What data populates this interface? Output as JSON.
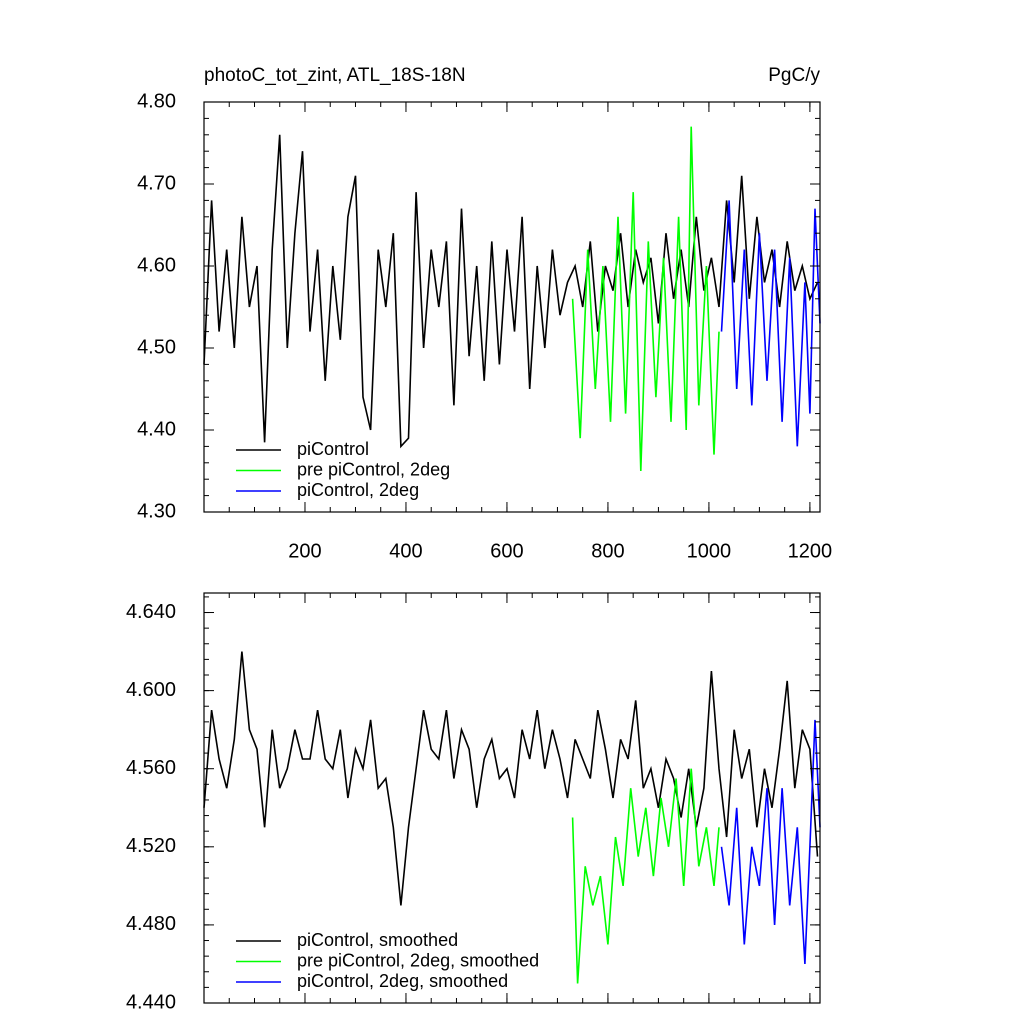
{
  "chart_data": [
    {
      "type": "line",
      "title": "photoC_tot_zint, ATL_18S-18N",
      "units": "PgC/y",
      "xlim": [
        0,
        1220
      ],
      "xticks": [
        200,
        400,
        600,
        800,
        1000,
        1200
      ],
      "xtick_labels": true,
      "ylim": [
        4.3,
        4.8
      ],
      "yticks": [
        {
          "value": 4.3,
          "label": "4.30"
        },
        {
          "value": 4.4,
          "label": "4.40"
        },
        {
          "value": 4.5,
          "label": "4.50"
        },
        {
          "value": 4.6,
          "label": "4.60"
        },
        {
          "value": 4.7,
          "label": "4.70"
        },
        {
          "value": 4.8,
          "label": "4.80"
        }
      ],
      "legend": "lower left",
      "series": [
        {
          "name": "piControl",
          "color": "#000000",
          "x": [
            0,
            15,
            30,
            45,
            60,
            75,
            90,
            105,
            120,
            135,
            150,
            165,
            180,
            195,
            210,
            225,
            240,
            255,
            270,
            285,
            300,
            315,
            330,
            345,
            360,
            375,
            390,
            405,
            420,
            435,
            450,
            465,
            480,
            495,
            510,
            525,
            540,
            555,
            570,
            585,
            600,
            615,
            630,
            645,
            660,
            675,
            690,
            705,
            720,
            735,
            750,
            765,
            780,
            795,
            810,
            825,
            840,
            855,
            870,
            885,
            900,
            915,
            930,
            945,
            960,
            975,
            990,
            1005,
            1020,
            1035,
            1050,
            1065,
            1080,
            1095,
            1110,
            1125,
            1140,
            1155,
            1170,
            1185,
            1200,
            1215
          ],
          "values": [
            4.48,
            4.68,
            4.52,
            4.62,
            4.5,
            4.66,
            4.55,
            4.6,
            4.385,
            4.62,
            4.76,
            4.5,
            4.64,
            4.74,
            4.52,
            4.62,
            4.46,
            4.6,
            4.51,
            4.66,
            4.71,
            4.44,
            4.4,
            4.62,
            4.55,
            4.64,
            4.38,
            4.39,
            4.69,
            4.5,
            4.62,
            4.55,
            4.63,
            4.43,
            4.67,
            4.49,
            4.6,
            4.46,
            4.63,
            4.48,
            4.62,
            4.52,
            4.66,
            4.45,
            4.6,
            4.5,
            4.62,
            4.54,
            4.58,
            4.6,
            4.55,
            4.63,
            4.52,
            4.6,
            4.57,
            4.64,
            4.55,
            4.62,
            4.58,
            4.61,
            4.53,
            4.64,
            4.56,
            4.62,
            4.55,
            4.66,
            4.57,
            4.61,
            4.55,
            4.68,
            4.58,
            4.71,
            4.56,
            4.66,
            4.58,
            4.62,
            4.55,
            4.63,
            4.57,
            4.6,
            4.56,
            4.58
          ]
        },
        {
          "name": "pre piControl, 2deg",
          "color": "#00ff00",
          "x": [
            730,
            745,
            760,
            775,
            790,
            805,
            820,
            835,
            850,
            865,
            880,
            895,
            910,
            925,
            940,
            955,
            965,
            980,
            995,
            1010,
            1020
          ],
          "values": [
            4.56,
            4.39,
            4.62,
            4.45,
            4.6,
            4.41,
            4.66,
            4.42,
            4.69,
            4.35,
            4.63,
            4.44,
            4.61,
            4.41,
            4.66,
            4.4,
            4.77,
            4.43,
            4.6,
            4.37,
            4.52
          ]
        },
        {
          "name": "piControl, 2deg",
          "color": "#0000ff",
          "x": [
            1025,
            1040,
            1055,
            1070,
            1085,
            1100,
            1115,
            1130,
            1145,
            1160,
            1175,
            1190,
            1200,
            1210,
            1220
          ],
          "values": [
            4.52,
            4.68,
            4.45,
            4.62,
            4.43,
            4.64,
            4.46,
            4.62,
            4.41,
            4.61,
            4.38,
            4.58,
            4.42,
            4.67,
            4.53
          ]
        }
      ]
    },
    {
      "type": "line",
      "xlim": [
        0,
        1220
      ],
      "xticks": [
        200,
        400,
        600,
        800,
        1000,
        1200
      ],
      "xtick_labels": false,
      "ylim": [
        4.44,
        4.65
      ],
      "yticks": [
        {
          "value": 4.44,
          "label": "4.440"
        },
        {
          "value": 4.48,
          "label": "4.480"
        },
        {
          "value": 4.52,
          "label": "4.520"
        },
        {
          "value": 4.56,
          "label": "4.560"
        },
        {
          "value": 4.6,
          "label": "4.600"
        },
        {
          "value": 4.64,
          "label": "4.640"
        }
      ],
      "legend": "lower left",
      "series": [
        {
          "name": "piControl, smoothed",
          "color": "#000000",
          "x": [
            0,
            15,
            30,
            45,
            60,
            75,
            90,
            105,
            120,
            135,
            150,
            165,
            180,
            195,
            210,
            225,
            240,
            255,
            270,
            285,
            300,
            315,
            330,
            345,
            360,
            375,
            390,
            405,
            420,
            435,
            450,
            465,
            480,
            495,
            510,
            525,
            540,
            555,
            570,
            585,
            600,
            615,
            630,
            645,
            660,
            675,
            690,
            705,
            720,
            735,
            750,
            765,
            780,
            795,
            810,
            825,
            840,
            855,
            870,
            885,
            900,
            915,
            930,
            945,
            960,
            975,
            990,
            1005,
            1020,
            1035,
            1050,
            1065,
            1080,
            1095,
            1110,
            1125,
            1140,
            1155,
            1170,
            1185,
            1200,
            1215
          ],
          "values": [
            4.54,
            4.59,
            4.565,
            4.55,
            4.575,
            4.62,
            4.58,
            4.57,
            4.53,
            4.58,
            4.55,
            4.56,
            4.58,
            4.565,
            4.565,
            4.59,
            4.565,
            4.56,
            4.58,
            4.545,
            4.57,
            4.56,
            4.585,
            4.55,
            4.555,
            4.53,
            4.49,
            4.53,
            4.56,
            4.59,
            4.57,
            4.565,
            4.59,
            4.555,
            4.58,
            4.57,
            4.54,
            4.565,
            4.575,
            4.555,
            4.56,
            4.545,
            4.58,
            4.565,
            4.59,
            4.56,
            4.58,
            4.565,
            4.545,
            4.575,
            4.565,
            4.555,
            4.59,
            4.57,
            4.545,
            4.575,
            4.565,
            4.595,
            4.55,
            4.56,
            4.54,
            4.565,
            4.555,
            4.535,
            4.56,
            4.53,
            4.55,
            4.61,
            4.56,
            4.525,
            4.58,
            4.555,
            4.57,
            4.53,
            4.56,
            4.54,
            4.57,
            4.605,
            4.55,
            4.58,
            4.57,
            4.515
          ]
        },
        {
          "name": "pre piControl, 2deg, smoothed",
          "color": "#00ff00",
          "x": [
            730,
            740,
            755,
            770,
            785,
            800,
            815,
            830,
            845,
            860,
            875,
            890,
            905,
            920,
            935,
            950,
            965,
            980,
            995,
            1010,
            1020
          ],
          "values": [
            4.535,
            4.45,
            4.51,
            4.49,
            4.505,
            4.47,
            4.525,
            4.5,
            4.55,
            4.515,
            4.54,
            4.505,
            4.545,
            4.52,
            4.555,
            4.5,
            4.56,
            4.51,
            4.53,
            4.5,
            4.53
          ]
        },
        {
          "name": "piControl, 2deg, smoothed",
          "color": "#0000ff",
          "x": [
            1025,
            1040,
            1055,
            1070,
            1085,
            1100,
            1115,
            1130,
            1145,
            1160,
            1175,
            1190,
            1200,
            1210,
            1220
          ],
          "values": [
            4.52,
            4.49,
            4.54,
            4.47,
            4.52,
            4.5,
            4.55,
            4.48,
            4.55,
            4.49,
            4.53,
            4.46,
            4.52,
            4.585,
            4.53
          ]
        }
      ]
    }
  ]
}
